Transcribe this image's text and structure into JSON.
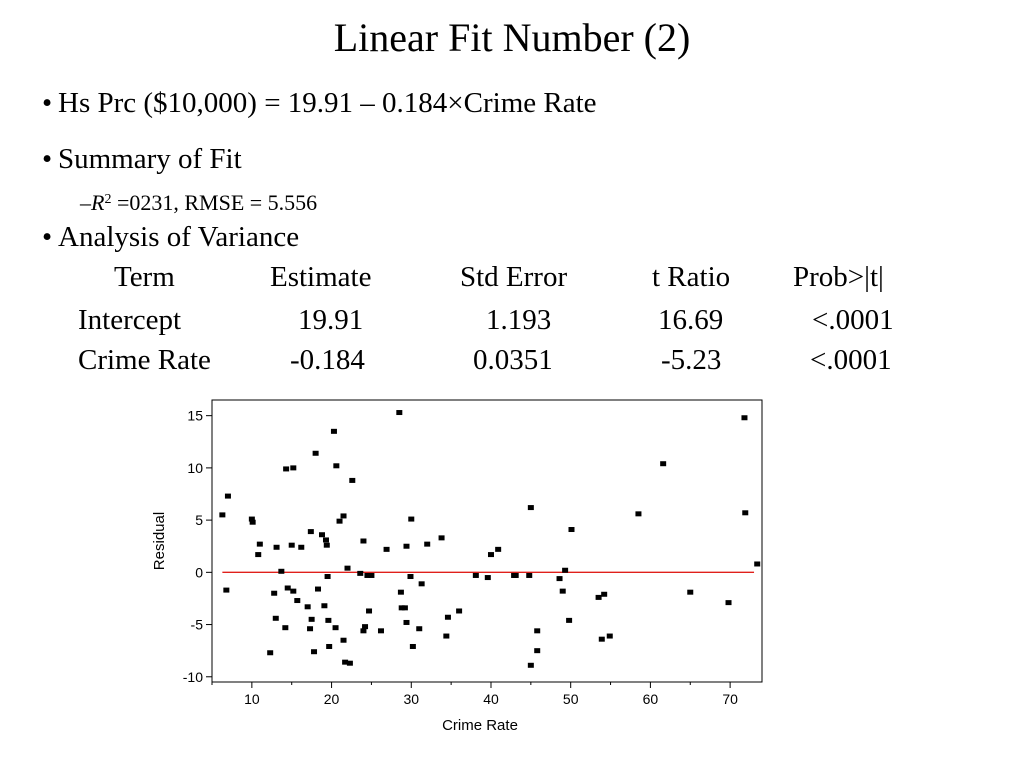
{
  "slide": {
    "title": "Linear Fit Number (2)",
    "bullet_marker": "•",
    "equation": "Hs Prc ($10,000) = 19.91 – 0.184×Crime Rate",
    "summary_heading": "Summary of Fit",
    "summary_line": {
      "dash": "–",
      "r_symbol": "R",
      "r_sup": "2",
      "r_rest": " =0231,  RMSE = 5.556"
    },
    "anova_heading": "Analysis of Variance"
  },
  "table": {
    "headers": [
      "Term",
      "Estimate",
      "Std Error",
      "t Ratio",
      "Prob>|t|"
    ],
    "rows": [
      [
        "Intercept",
        "19.91",
        "1.193",
        "16.69",
        "<.0001"
      ],
      [
        "Crime Rate",
        "-0.184",
        "0.0351",
        "-5.23",
        "<.0001"
      ]
    ]
  },
  "chart_data": {
    "type": "scatter",
    "xlabel": "Crime Rate",
    "ylabel": "Residual",
    "xlim": [
      5,
      74
    ],
    "ylim": [
      -10.5,
      16.5
    ],
    "xticks": [
      10,
      20,
      30,
      40,
      50,
      60,
      70
    ],
    "yticks": [
      -10,
      -5,
      0,
      5,
      10,
      15
    ],
    "reference_line": {
      "y": 0,
      "color": "#e0201b"
    },
    "point_color": "#000000",
    "points": [
      [
        6.3,
        5.5
      ],
      [
        6.8,
        -1.7
      ],
      [
        7.0,
        7.3
      ],
      [
        10.0,
        5.1
      ],
      [
        10.1,
        4.8
      ],
      [
        10.8,
        1.7
      ],
      [
        11.0,
        2.7
      ],
      [
        12.3,
        -7.7
      ],
      [
        12.8,
        -2.0
      ],
      [
        13.0,
        -4.4
      ],
      [
        13.1,
        2.4
      ],
      [
        13.7,
        0.1
      ],
      [
        14.2,
        -5.3
      ],
      [
        14.3,
        9.9
      ],
      [
        14.5,
        -1.5
      ],
      [
        15.0,
        2.6
      ],
      [
        15.2,
        10.0
      ],
      [
        15.2,
        -1.8
      ],
      [
        15.7,
        -2.7
      ],
      [
        16.2,
        2.4
      ],
      [
        17.0,
        -3.3
      ],
      [
        17.3,
        -5.4
      ],
      [
        17.4,
        3.9
      ],
      [
        17.5,
        -4.5
      ],
      [
        17.8,
        -7.6
      ],
      [
        18.0,
        11.4
      ],
      [
        18.3,
        -1.6
      ],
      [
        18.8,
        3.6
      ],
      [
        19.1,
        -3.2
      ],
      [
        19.3,
        3.1
      ],
      [
        19.4,
        2.6
      ],
      [
        19.5,
        -0.4
      ],
      [
        19.6,
        -4.6
      ],
      [
        19.7,
        -7.1
      ],
      [
        20.3,
        13.5
      ],
      [
        20.5,
        -5.3
      ],
      [
        20.6,
        10.2
      ],
      [
        21.0,
        4.9
      ],
      [
        21.5,
        5.4
      ],
      [
        21.5,
        -6.5
      ],
      [
        21.7,
        -8.6
      ],
      [
        22.0,
        0.4
      ],
      [
        22.3,
        -8.7
      ],
      [
        22.6,
        8.8
      ],
      [
        23.6,
        -0.1
      ],
      [
        24.0,
        3.0
      ],
      [
        24.0,
        -5.6
      ],
      [
        24.2,
        -5.2
      ],
      [
        24.5,
        -0.3
      ],
      [
        24.7,
        -3.7
      ],
      [
        25.0,
        -0.3
      ],
      [
        26.2,
        -5.6
      ],
      [
        26.9,
        2.2
      ],
      [
        28.5,
        15.3
      ],
      [
        28.7,
        -1.9
      ],
      [
        28.8,
        -3.4
      ],
      [
        29.2,
        -3.4
      ],
      [
        29.4,
        2.5
      ],
      [
        29.4,
        -4.8
      ],
      [
        29.9,
        -0.4
      ],
      [
        30.0,
        5.1
      ],
      [
        30.2,
        -7.1
      ],
      [
        31.0,
        -5.4
      ],
      [
        31.3,
        -1.1
      ],
      [
        32.0,
        2.7
      ],
      [
        33.8,
        3.3
      ],
      [
        34.4,
        -6.1
      ],
      [
        34.6,
        -4.3
      ],
      [
        36.0,
        -3.7
      ],
      [
        38.1,
        -0.3
      ],
      [
        39.6,
        -0.5
      ],
      [
        40.0,
        1.7
      ],
      [
        40.9,
        2.2
      ],
      [
        42.9,
        -0.3
      ],
      [
        43.1,
        -0.3
      ],
      [
        44.8,
        -0.3
      ],
      [
        45.0,
        -8.9
      ],
      [
        45.0,
        6.2
      ],
      [
        45.8,
        -5.6
      ],
      [
        45.8,
        -7.5
      ],
      [
        48.6,
        -0.6
      ],
      [
        49.0,
        -1.8
      ],
      [
        49.3,
        0.2
      ],
      [
        49.8,
        -4.6
      ],
      [
        50.1,
        4.1
      ],
      [
        53.5,
        -2.4
      ],
      [
        53.9,
        -6.4
      ],
      [
        54.2,
        -2.1
      ],
      [
        54.9,
        -6.1
      ],
      [
        58.5,
        5.6
      ],
      [
        61.6,
        10.4
      ],
      [
        65.0,
        -1.9
      ],
      [
        69.8,
        -2.9
      ],
      [
        71.8,
        14.8
      ],
      [
        71.9,
        5.7
      ],
      [
        73.4,
        0.8
      ]
    ]
  }
}
